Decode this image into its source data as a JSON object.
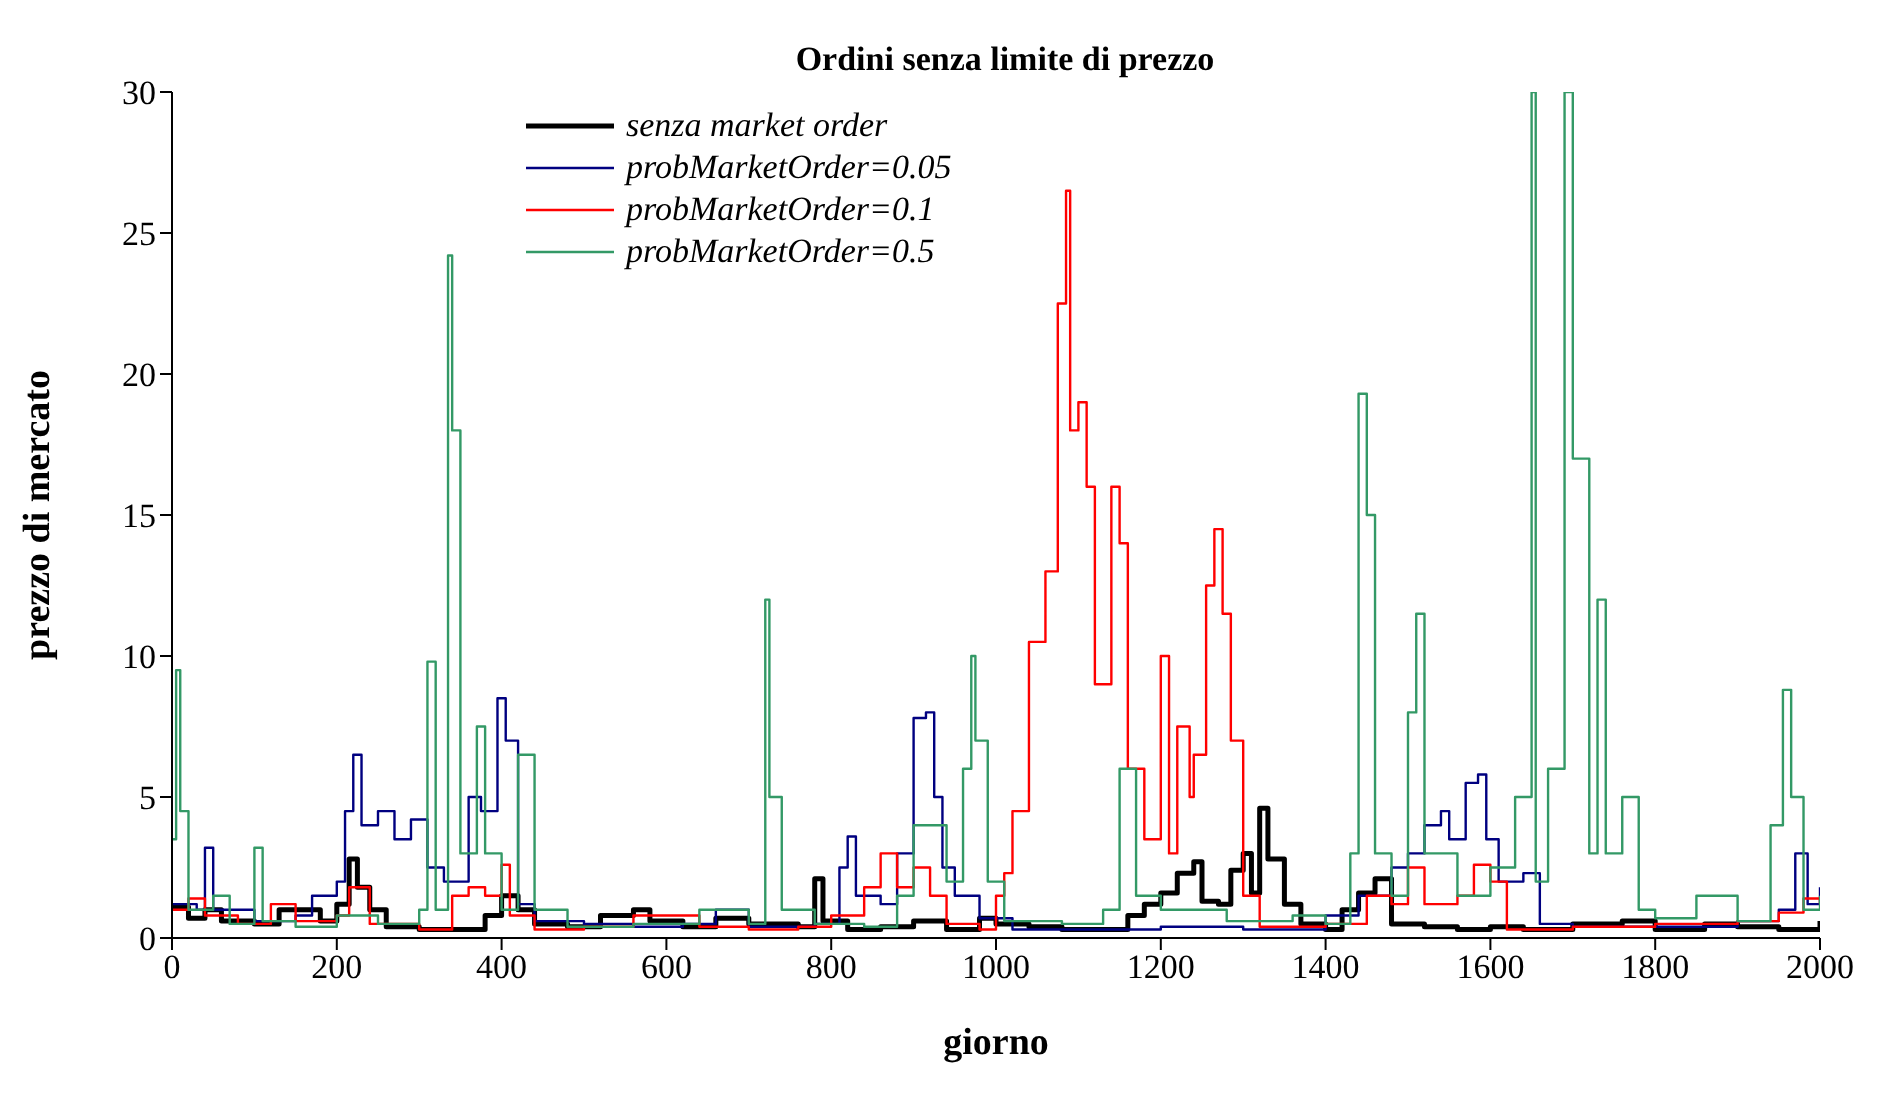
{
  "chart_data": {
    "type": "step",
    "title": "Ordini senza limite di prezzo",
    "xlabel": "giorno",
    "ylabel": "prezzo di mercato",
    "xlim": [
      0,
      2000
    ],
    "xticks": [
      0,
      200,
      400,
      600,
      800,
      1000,
      1200,
      1400,
      1600,
      1800,
      2000
    ],
    "ylim": [
      0,
      30
    ],
    "yticks": [
      0,
      5,
      10,
      15,
      20,
      25,
      30
    ],
    "grid": false,
    "legend": "top",
    "marker": "none",
    "series": [
      {
        "name": "senza market order",
        "color": "#000000",
        "x": [
          0,
          20,
          40,
          60,
          100,
          130,
          160,
          180,
          200,
          215,
          225,
          240,
          260,
          300,
          350,
          380,
          400,
          420,
          440,
          480,
          520,
          560,
          580,
          620,
          660,
          700,
          760,
          780,
          790,
          820,
          860,
          900,
          940,
          980,
          1000,
          1040,
          1080,
          1120,
          1160,
          1180,
          1200,
          1220,
          1240,
          1250,
          1270,
          1285,
          1300,
          1310,
          1320,
          1330,
          1350,
          1370,
          1400,
          1420,
          1440,
          1460,
          1480,
          1520,
          1560,
          1600,
          1640,
          1700,
          1760,
          1800,
          1860,
          1900,
          1950,
          2000
        ],
        "values": [
          1.1,
          0.7,
          1.0,
          0.6,
          0.5,
          1.0,
          1.0,
          0.6,
          1.2,
          2.8,
          1.8,
          1.0,
          0.4,
          0.3,
          0.3,
          0.8,
          1.5,
          1.0,
          0.5,
          0.4,
          0.8,
          1.0,
          0.6,
          0.4,
          0.7,
          0.5,
          0.4,
          2.1,
          0.6,
          0.3,
          0.4,
          0.6,
          0.3,
          0.7,
          0.5,
          0.4,
          0.3,
          0.3,
          0.8,
          1.2,
          1.6,
          2.3,
          2.7,
          1.3,
          1.2,
          2.4,
          3.0,
          1.6,
          4.6,
          2.8,
          1.2,
          0.5,
          0.3,
          1.0,
          1.6,
          2.1,
          0.5,
          0.4,
          0.3,
          0.4,
          0.3,
          0.5,
          0.6,
          0.3,
          0.5,
          0.4,
          0.3,
          0.6
        ]
      },
      {
        "name": "probMarketOrder=0.05",
        "color": "#000080",
        "x": [
          0,
          30,
          40,
          50,
          100,
          150,
          170,
          200,
          210,
          220,
          230,
          250,
          270,
          290,
          310,
          330,
          360,
          375,
          395,
          405,
          420,
          440,
          500,
          560,
          620,
          660,
          700,
          780,
          810,
          820,
          830,
          860,
          880,
          900,
          915,
          925,
          935,
          950,
          980,
          1020,
          1100,
          1200,
          1300,
          1400,
          1440,
          1480,
          1500,
          1520,
          1540,
          1550,
          1570,
          1585,
          1595,
          1610,
          1640,
          1660,
          1700,
          1800,
          1900,
          1950,
          1970,
          1985,
          2000
        ],
        "values": [
          1.2,
          1.0,
          3.2,
          1.0,
          0.6,
          0.8,
          1.5,
          2.0,
          4.5,
          6.5,
          4.0,
          4.5,
          3.5,
          4.2,
          2.5,
          2.0,
          5.0,
          4.5,
          8.5,
          7.0,
          1.2,
          0.6,
          0.5,
          0.4,
          0.5,
          1.0,
          0.4,
          0.5,
          2.5,
          3.6,
          1.5,
          1.2,
          3.0,
          7.8,
          8.0,
          5.0,
          2.5,
          1.5,
          0.7,
          0.3,
          0.3,
          0.4,
          0.3,
          0.8,
          1.5,
          2.5,
          3.0,
          4.0,
          4.5,
          3.5,
          5.5,
          5.8,
          3.5,
          2.0,
          2.3,
          0.5,
          0.4,
          0.4,
          0.6,
          1.0,
          3.0,
          1.2,
          1.8
        ]
      },
      {
        "name": "probMarketOrder=0.1",
        "color": "#ff0000",
        "x": [
          0,
          20,
          40,
          80,
          120,
          150,
          200,
          215,
          240,
          300,
          340,
          360,
          380,
          400,
          410,
          440,
          500,
          560,
          640,
          700,
          760,
          800,
          840,
          860,
          880,
          900,
          920,
          940,
          980,
          1000,
          1010,
          1020,
          1040,
          1060,
          1075,
          1085,
          1090,
          1100,
          1110,
          1120,
          1140,
          1150,
          1160,
          1180,
          1200,
          1210,
          1220,
          1235,
          1240,
          1255,
          1265,
          1275,
          1285,
          1300,
          1320,
          1400,
          1450,
          1480,
          1500,
          1520,
          1560,
          1580,
          1600,
          1620,
          1700,
          1800,
          1900,
          1950,
          1980,
          2000
        ],
        "values": [
          1.0,
          1.4,
          0.8,
          0.5,
          1.2,
          0.6,
          0.8,
          1.8,
          0.5,
          0.3,
          1.5,
          1.8,
          1.5,
          2.6,
          0.8,
          0.3,
          0.4,
          0.8,
          0.4,
          0.3,
          0.4,
          0.8,
          1.8,
          3.0,
          1.8,
          2.5,
          1.5,
          0.5,
          0.3,
          1.5,
          2.3,
          4.5,
          10.5,
          13,
          22.5,
          26.5,
          18,
          19,
          16,
          9,
          16,
          14,
          6,
          3.5,
          10,
          3,
          7.5,
          5,
          6.5,
          12.5,
          14.5,
          11.5,
          7,
          1.5,
          0.4,
          0.5,
          1.5,
          1.2,
          2.5,
          1.2,
          1.5,
          2.6,
          2.0,
          0.3,
          0.4,
          0.5,
          0.6,
          0.9,
          1.4,
          1.2
        ]
      },
      {
        "name": "probMarketOrder=0.5",
        "color": "#339966",
        "x": [
          0,
          5,
          10,
          20,
          50,
          70,
          100,
          110,
          150,
          200,
          250,
          300,
          310,
          320,
          335,
          340,
          350,
          370,
          380,
          400,
          420,
          440,
          480,
          560,
          640,
          700,
          720,
          725,
          740,
          780,
          840,
          880,
          900,
          940,
          960,
          970,
          975,
          990,
          1010,
          1080,
          1130,
          1150,
          1170,
          1200,
          1280,
          1360,
          1400,
          1430,
          1440,
          1450,
          1460,
          1480,
          1500,
          1510,
          1520,
          1560,
          1600,
          1630,
          1650,
          1655,
          1670,
          1690,
          1700,
          1720,
          1730,
          1740,
          1760,
          1780,
          1800,
          1850,
          1900,
          1940,
          1955,
          1965,
          1980,
          2000
        ],
        "values": [
          3.5,
          9.5,
          4.5,
          1.0,
          1.5,
          0.5,
          3.2,
          0.6,
          0.4,
          0.8,
          0.5,
          1.0,
          9.8,
          1.0,
          24.2,
          18,
          3,
          7.5,
          3,
          1,
          6.5,
          1,
          0.4,
          0.5,
          1.0,
          0.5,
          12,
          5,
          1,
          0.5,
          0.4,
          1.5,
          4,
          2,
          6,
          10,
          7,
          2,
          0.6,
          0.5,
          1,
          6,
          1.5,
          1.0,
          0.6,
          0.8,
          0.5,
          3,
          19.3,
          15,
          3,
          1.5,
          8,
          11.5,
          3,
          1.5,
          2.5,
          5,
          30,
          2,
          6,
          30,
          17,
          3,
          12,
          3,
          5,
          1,
          0.7,
          1.5,
          0.6,
          4,
          8.8,
          5,
          1,
          1.5
        ]
      }
    ]
  }
}
